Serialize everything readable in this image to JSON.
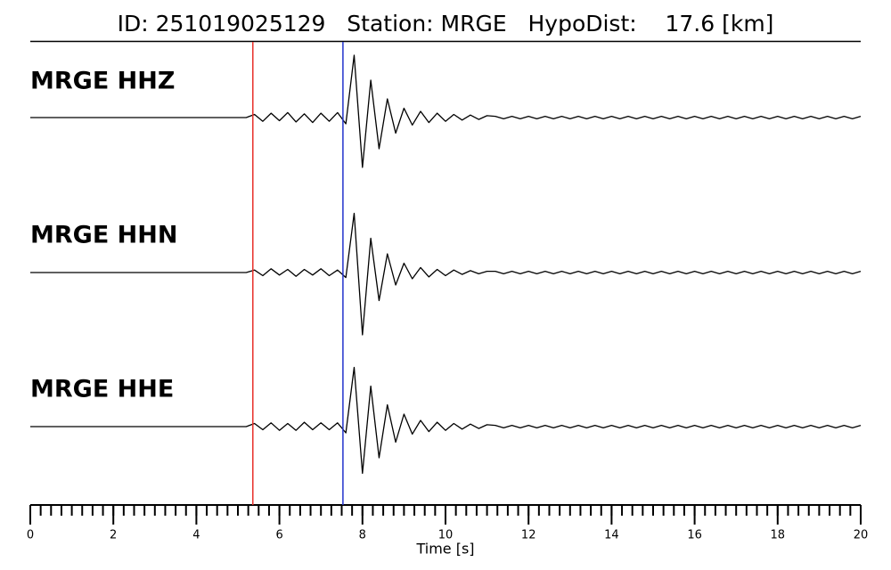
{
  "chart_data": {
    "type": "line",
    "title": "ID: 251019025129   Station: MRGE   HypoDist:    17.6 [km]",
    "xlabel": "Time [s]",
    "xlim": [
      0,
      20
    ],
    "xticks": [
      0,
      2,
      4,
      6,
      8,
      10,
      12,
      14,
      16,
      18,
      20
    ],
    "xminorticks": [
      0,
      0.25,
      0.5,
      0.75,
      1,
      1.25,
      1.5,
      1.75,
      2,
      2.25,
      2.5,
      2.75,
      3,
      3.25,
      3.5,
      3.75,
      4,
      4.25,
      4.5,
      4.75,
      5,
      5.25,
      5.5,
      5.75,
      6,
      6.25,
      6.5,
      6.75,
      7,
      7.25,
      7.5,
      7.75,
      8,
      8.25,
      8.5,
      8.75,
      9,
      9.25,
      9.5,
      9.75,
      10,
      10.25,
      10.5,
      10.75,
      11,
      11.25,
      11.5,
      11.75,
      12,
      12.25,
      12.5,
      12.75,
      13,
      13.25,
      13.5,
      13.75,
      14,
      14.25,
      14.5,
      14.75,
      15,
      15.25,
      15.5,
      15.75,
      16,
      16.25,
      16.5,
      16.75,
      17,
      17.25,
      17.5,
      17.75,
      18,
      18.25,
      18.5,
      18.75,
      19,
      19.25,
      19.5,
      19.75,
      20
    ],
    "picks": [
      {
        "time": 5.36,
        "color": "#e8302a"
      },
      {
        "time": 7.53,
        "color": "#2233cc"
      }
    ],
    "label_color": "#4e9a06",
    "x": [
      0,
      0.2,
      0.4,
      0.6,
      0.8,
      1,
      1.2,
      1.4,
      1.6,
      1.8,
      2,
      2.2,
      2.4,
      2.6,
      2.8,
      3,
      3.2,
      3.4,
      3.6,
      3.8,
      4,
      4.2,
      4.4,
      4.6,
      4.8,
      5,
      5.2,
      5.4,
      5.6,
      5.8,
      6,
      6.2,
      6.4,
      6.6,
      6.8,
      7,
      7.2,
      7.4,
      7.6,
      7.8,
      8,
      8.2,
      8.4,
      8.6,
      8.8,
      9,
      9.2,
      9.4,
      9.6,
      9.8,
      10,
      10.2,
      10.4,
      10.6,
      10.8,
      11,
      11.2,
      11.4,
      11.6,
      11.8,
      12,
      12.2,
      12.4,
      12.6,
      12.8,
      13,
      13.2,
      13.4,
      13.6,
      13.8,
      14,
      14.2,
      14.4,
      14.6,
      14.8,
      15,
      15.2,
      15.4,
      15.6,
      15.8,
      16,
      16.2,
      16.4,
      16.6,
      16.8,
      17,
      17.2,
      17.4,
      17.6,
      17.8,
      18,
      18.2,
      18.4,
      18.6,
      18.8,
      19,
      19.2,
      19.4,
      19.6,
      19.8,
      20
    ],
    "series": [
      {
        "name": "MRGE HHZ",
        "color": "#000000",
        "values": [
          0,
          0,
          0,
          0,
          0,
          0,
          0,
          0,
          0,
          0,
          0,
          0,
          0,
          0,
          0,
          0,
          0,
          0,
          0,
          0,
          0,
          0,
          0,
          0,
          0,
          0,
          0,
          0.05,
          -0.06,
          0.07,
          -0.05,
          0.08,
          -0.07,
          0.06,
          -0.08,
          0.07,
          -0.06,
          0.08,
          -0.1,
          1.0,
          -0.8,
          0.6,
          -0.5,
          0.3,
          -0.25,
          0.15,
          -0.12,
          0.1,
          -0.08,
          0.07,
          -0.06,
          0.05,
          -0.04,
          0.04,
          -0.03,
          0.03,
          0.02,
          -0.02,
          0.02,
          -0.02,
          0.02,
          -0.02,
          0.02,
          -0.02,
          0.02,
          -0.02,
          0.02,
          -0.02,
          0.02,
          -0.02,
          0.02,
          -0.02,
          0.02,
          -0.02,
          0.02,
          -0.02,
          0.02,
          -0.02,
          0.02,
          -0.02,
          0.02,
          -0.02,
          0.02,
          -0.02,
          0.02,
          -0.02,
          0.02,
          -0.02,
          0.02,
          -0.02,
          0.02,
          -0.02,
          0.02,
          -0.02,
          0.02,
          -0.02,
          0.02,
          -0.02,
          0.02,
          -0.02,
          0.02
        ]
      },
      {
        "name": "MRGE HHN",
        "color": "#000000",
        "values": [
          0,
          0,
          0,
          0,
          0,
          0,
          0,
          0,
          0,
          0,
          0,
          0,
          0,
          0,
          0,
          0,
          0,
          0,
          0,
          0,
          0,
          0,
          0,
          0,
          0,
          0,
          0,
          0.04,
          -0.05,
          0.06,
          -0.04,
          0.05,
          -0.06,
          0.05,
          -0.04,
          0.06,
          -0.05,
          0.04,
          -0.08,
          0.95,
          -1.0,
          0.55,
          -0.45,
          0.3,
          -0.2,
          0.15,
          -0.1,
          0.08,
          -0.07,
          0.05,
          -0.05,
          0.04,
          -0.03,
          0.03,
          -0.02,
          0.02,
          0.02,
          -0.02,
          0.02,
          -0.02,
          0.02,
          -0.02,
          0.02,
          -0.02,
          0.02,
          -0.02,
          0.02,
          -0.02,
          0.02,
          -0.02,
          0.02,
          -0.02,
          0.02,
          -0.02,
          0.02,
          -0.02,
          0.02,
          -0.02,
          0.02,
          -0.02,
          0.02,
          -0.02,
          0.02,
          -0.02,
          0.02,
          -0.02,
          0.02,
          -0.02,
          0.02,
          -0.02,
          0.02,
          -0.02,
          0.02,
          -0.02,
          0.02,
          -0.02,
          0.02,
          -0.02,
          0.02,
          -0.02,
          0.02
        ]
      },
      {
        "name": "MRGE HHE",
        "color": "#000000",
        "values": [
          0,
          0,
          0,
          0,
          0,
          0,
          0,
          0,
          0,
          0,
          0,
          0,
          0,
          0,
          0,
          0,
          0,
          0,
          0,
          0,
          0,
          0,
          0,
          0,
          0,
          0,
          0,
          0.05,
          -0.05,
          0.06,
          -0.06,
          0.05,
          -0.06,
          0.07,
          -0.05,
          0.06,
          -0.05,
          0.06,
          -0.1,
          0.95,
          -0.75,
          0.65,
          -0.5,
          0.35,
          -0.25,
          0.2,
          -0.12,
          0.1,
          -0.08,
          0.07,
          -0.06,
          0.05,
          -0.04,
          0.04,
          -0.03,
          0.03,
          0.02,
          -0.02,
          0.02,
          -0.02,
          0.02,
          -0.02,
          0.02,
          -0.02,
          0.02,
          -0.02,
          0.02,
          -0.02,
          0.02,
          -0.02,
          0.02,
          -0.02,
          0.02,
          -0.02,
          0.02,
          -0.02,
          0.02,
          -0.02,
          0.02,
          -0.02,
          0.02,
          -0.02,
          0.02,
          -0.02,
          0.02,
          -0.02,
          0.02,
          -0.02,
          0.02,
          -0.02,
          0.02,
          -0.02,
          0.02,
          -0.02,
          0.02,
          -0.02,
          0.02,
          -0.02,
          0.02,
          -0.02,
          0.02
        ]
      }
    ]
  }
}
